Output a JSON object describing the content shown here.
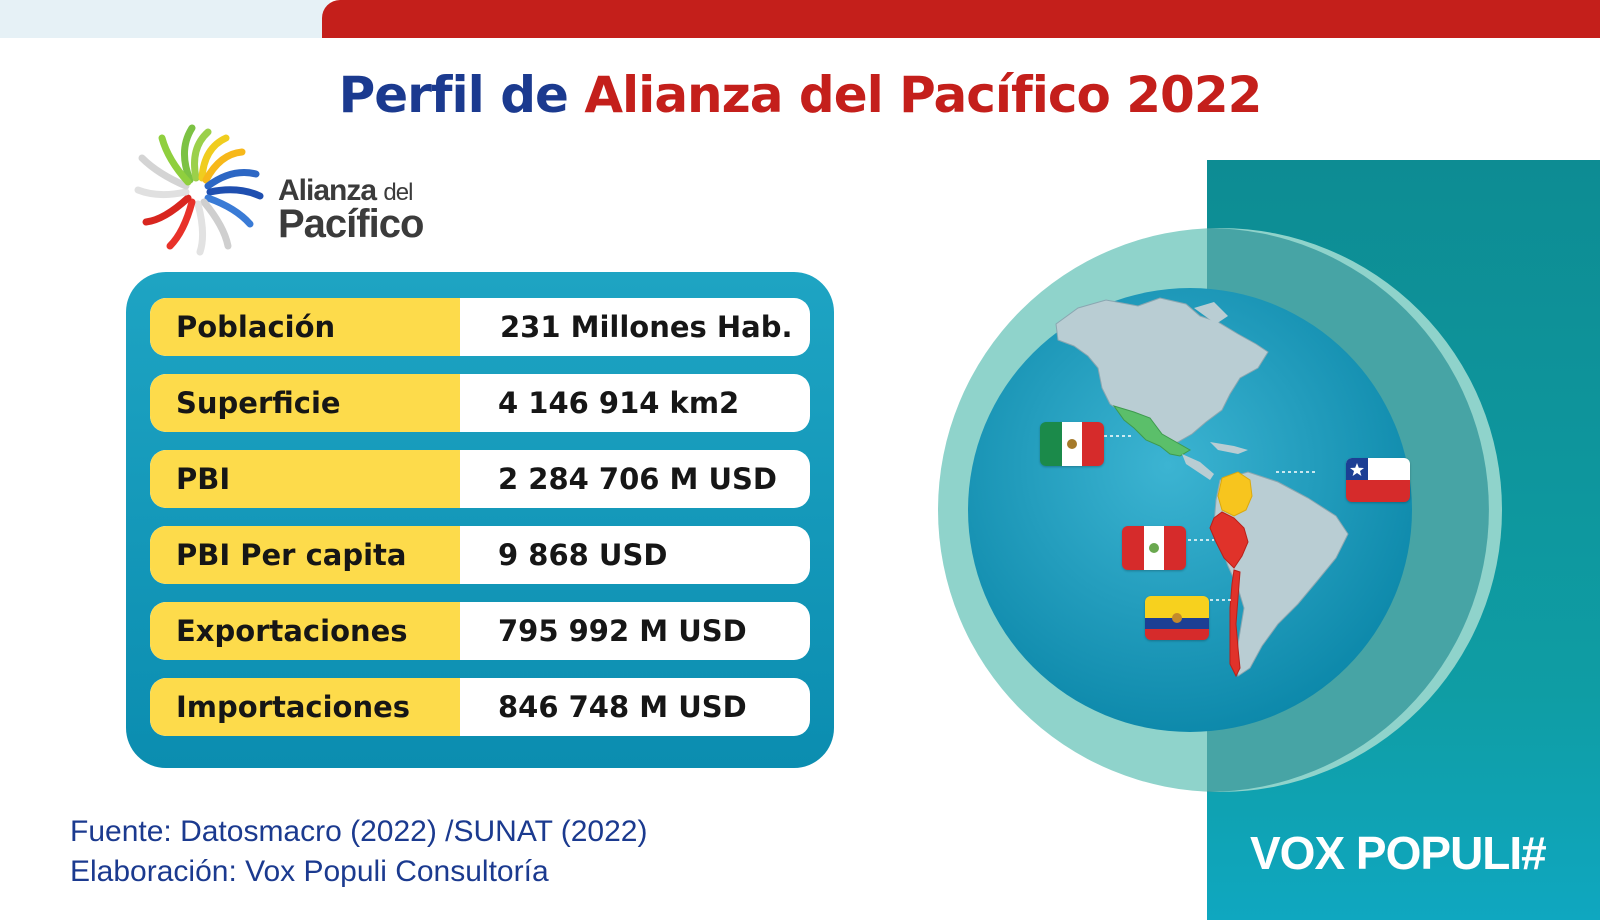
{
  "header": {
    "title_part1": "Perfil de",
    "title_part2": "Alianza del Pacífico 2022"
  },
  "logo": {
    "line1_main": "Alianza",
    "line1_small": "del",
    "line2": "Pacífico"
  },
  "stats": [
    {
      "label": "Población",
      "value": "231 Millones Hab."
    },
    {
      "label": "Superficie",
      "value": "4 146 914 km2"
    },
    {
      "label": "PBI",
      "value": "2 284 706 M USD"
    },
    {
      "label": "PBI Per capita",
      "value": "9 868 USD"
    },
    {
      "label": "Exportaciones",
      "value": "795 992 M USD"
    },
    {
      "label": "Importaciones",
      "value": "846 748 M USD"
    }
  ],
  "footer": {
    "source": "Fuente: Datosmacro (2022) /SUNAT (2022)",
    "credit": "Elaboración: Vox Populi Consultoría"
  },
  "brand": "VOX POPULI#",
  "flags": [
    "mexico-flag",
    "chile-flag",
    "peru-flag",
    "colombia-flag"
  ],
  "colors": {
    "accent_red": "#c41f1b",
    "title_blue": "#1b3a8f",
    "label_yellow": "#fddb4b",
    "panel_teal": "#1ea4c3",
    "member_mexico": "#5bbf6a",
    "member_colombia": "#f7c51e",
    "member_peru": "#e0322a",
    "member_chile": "#e0322a"
  }
}
